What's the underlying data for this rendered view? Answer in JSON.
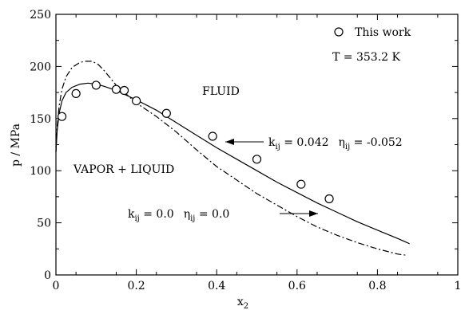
{
  "chart_data": {
    "type": "scatter",
    "title": "",
    "xlabel": "x",
    "xlabel_subscript": "2",
    "ylabel": "p / MPa",
    "xlim": [
      0,
      1
    ],
    "ylim": [
      0,
      250
    ],
    "xticks": [
      "0",
      "0.2",
      "0.4",
      "0.6",
      "0.8",
      "1"
    ],
    "yticks": [
      "0",
      "50",
      "100",
      "150",
      "200",
      "250"
    ],
    "legend": {
      "position": "top-right",
      "label": "This work",
      "marker": "open-circle"
    },
    "annotations": {
      "temperature": "T = 353.2 K",
      "fluid_region": "FLUID",
      "vle_region": "VAPOR + LIQUID",
      "fit_label": {
        "k_main": "k",
        "k_sub": "ij",
        "k_val": " = 0.042",
        "eta_main": "η",
        "eta_sub": "ij",
        "eta_val": " = -0.052"
      },
      "zero_label": {
        "k_main": "k",
        "k_sub": "ij",
        "k_val": " = 0.0",
        "eta_main": "η",
        "eta_sub": "ij",
        "eta_val": " = 0.0"
      }
    },
    "series": [
      {
        "name": "This work",
        "kind": "points",
        "x": [
          0.015,
          0.05,
          0.1,
          0.15,
          0.17,
          0.2,
          0.275,
          0.39,
          0.5,
          0.61,
          0.68
        ],
        "y": [
          152,
          174,
          182,
          178,
          177,
          167,
          155,
          133,
          111,
          87,
          73
        ]
      },
      {
        "name": "k_ij = 0.042 η_ij = -0.052",
        "kind": "solid",
        "x": [
          0.0,
          0.003,
          0.008,
          0.015,
          0.025,
          0.04,
          0.06,
          0.08,
          0.1,
          0.12,
          0.15,
          0.2,
          0.25,
          0.3,
          0.35,
          0.4,
          0.45,
          0.5,
          0.55,
          0.6,
          0.65,
          0.7,
          0.75,
          0.8,
          0.85,
          0.88
        ],
        "y": [
          118,
          138,
          155,
          167,
          175,
          180,
          183,
          184,
          183,
          181,
          177,
          168,
          158,
          146,
          134,
          122,
          111,
          100,
          89,
          79,
          69,
          60,
          51,
          43,
          35,
          30
        ]
      },
      {
        "name": "k_ij = 0.0 η_ij = 0.0",
        "kind": "dashed",
        "x": [
          0.0,
          0.003,
          0.008,
          0.015,
          0.025,
          0.04,
          0.06,
          0.075,
          0.09,
          0.105,
          0.12,
          0.15,
          0.2,
          0.25,
          0.3,
          0.35,
          0.4,
          0.45,
          0.5,
          0.55,
          0.6,
          0.65,
          0.7,
          0.75,
          0.8,
          0.85,
          0.87
        ],
        "y": [
          118,
          142,
          162,
          178,
          190,
          199,
          204,
          205,
          205,
          202,
          196,
          182,
          165,
          152,
          137,
          120,
          104,
          91,
          78,
          67,
          56,
          46,
          38,
          31,
          25,
          20,
          19
        ]
      }
    ]
  }
}
